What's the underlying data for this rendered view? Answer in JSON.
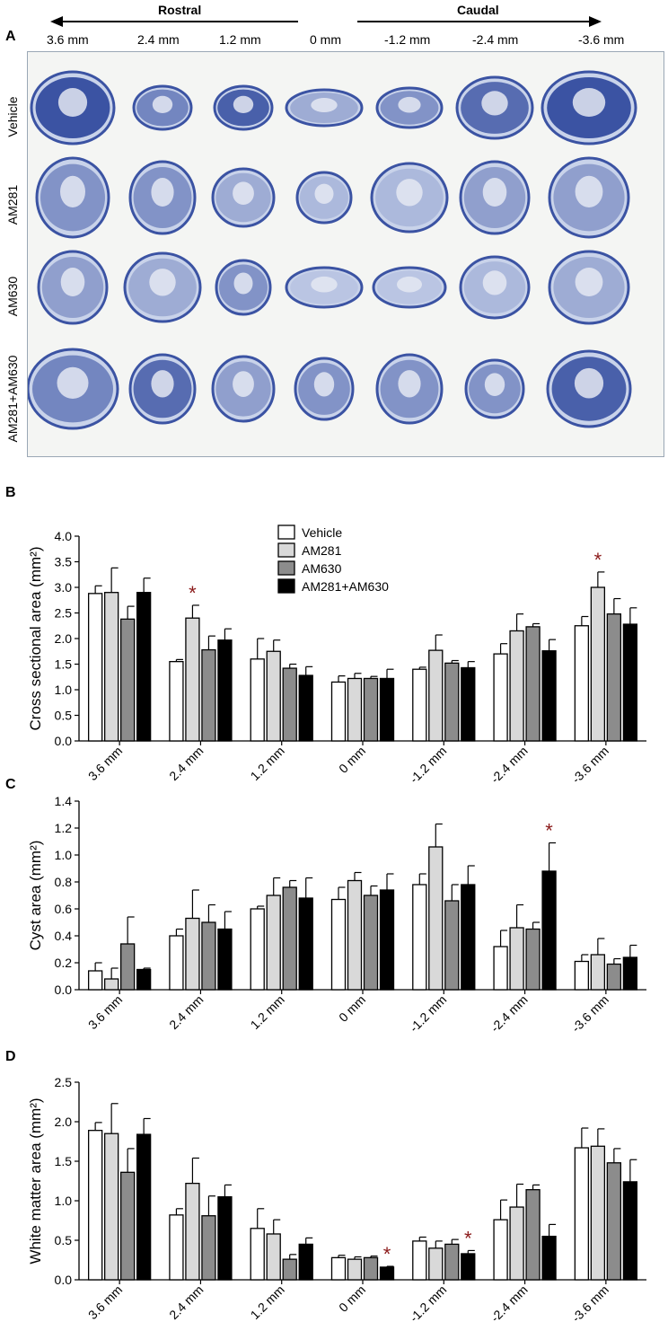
{
  "panel_a": {
    "letter": "A",
    "rostral": "Rostral",
    "caudal": "Caudal",
    "distances": [
      "3.6 mm",
      "2.4 mm",
      "1.2 mm",
      "0 mm",
      "-1.2 mm",
      "-2.4 mm",
      "-3.6 mm"
    ],
    "rows": [
      "Vehicle",
      "AM281",
      "AM630",
      "AM281+AM630"
    ]
  },
  "legend": [
    "Vehicle",
    "AM281",
    "AM630",
    "AM281+AM630"
  ],
  "colors": {
    "vehicle": "#ffffff",
    "am281": "#d9d9d9",
    "am630": "#8c8c8c",
    "combo": "#000000",
    "star": "#8b1a1a",
    "tissue_blue": "#3b53a3",
    "tissue_light": "#c9d3ea"
  },
  "chart_data": [
    {
      "letter": "B",
      "type": "bar",
      "ylabel": "Cross sectional area (mm²)",
      "ylim": [
        0,
        4.0
      ],
      "yticks": [
        "0.0",
        "0.5",
        "1.0",
        "1.5",
        "2.0",
        "2.5",
        "3.0",
        "3.5",
        "4.0"
      ],
      "categories": [
        "3.6 mm",
        "2.4 mm",
        "1.2 mm",
        "0 mm",
        "-1.2 mm",
        "-2.4 mm",
        "-3.6 mm"
      ],
      "series": [
        {
          "name": "Vehicle",
          "values": [
            2.88,
            1.55,
            1.6,
            1.15,
            1.4,
            1.7,
            2.25
          ],
          "errors": [
            0.15,
            0.04,
            0.4,
            0.12,
            0.04,
            0.2,
            0.18
          ]
        },
        {
          "name": "AM281",
          "values": [
            2.9,
            2.4,
            1.75,
            1.22,
            1.77,
            2.15,
            3.0
          ],
          "errors": [
            0.48,
            0.25,
            0.22,
            0.1,
            0.3,
            0.33,
            0.3
          ]
        },
        {
          "name": "AM630",
          "values": [
            2.38,
            1.78,
            1.42,
            1.22,
            1.52,
            2.23,
            2.48
          ],
          "errors": [
            0.25,
            0.27,
            0.08,
            0.04,
            0.05,
            0.06,
            0.3
          ]
        },
        {
          "name": "AM281+AM630",
          "values": [
            2.9,
            1.97,
            1.28,
            1.22,
            1.43,
            1.76,
            2.28
          ],
          "errors": [
            0.28,
            0.22,
            0.17,
            0.18,
            0.12,
            0.22,
            0.32
          ]
        }
      ],
      "stars": [
        {
          "category": 1,
          "series": 1
        },
        {
          "category": 6,
          "series": 1
        }
      ]
    },
    {
      "letter": "C",
      "type": "bar",
      "ylabel": "Cyst area (mm²)",
      "ylim": [
        0,
        1.4
      ],
      "yticks": [
        "0.0",
        "0.2",
        "0.4",
        "0.6",
        "0.8",
        "1.0",
        "1.2",
        "1.4"
      ],
      "categories": [
        "3.6 mm",
        "2.4 mm",
        "1.2 mm",
        "0 mm",
        "-1.2 mm",
        "-2.4 mm",
        "-3.6 mm"
      ],
      "series": [
        {
          "name": "Vehicle",
          "values": [
            0.14,
            0.4,
            0.6,
            0.67,
            0.78,
            0.32,
            0.21
          ],
          "errors": [
            0.06,
            0.05,
            0.02,
            0.09,
            0.08,
            0.12,
            0.05
          ]
        },
        {
          "name": "AM281",
          "values": [
            0.08,
            0.53,
            0.7,
            0.81,
            1.06,
            0.46,
            0.26
          ],
          "errors": [
            0.08,
            0.21,
            0.13,
            0.06,
            0.17,
            0.17,
            0.12
          ]
        },
        {
          "name": "AM630",
          "values": [
            0.34,
            0.5,
            0.76,
            0.7,
            0.66,
            0.45,
            0.19
          ],
          "errors": [
            0.2,
            0.13,
            0.05,
            0.07,
            0.12,
            0.05,
            0.04
          ]
        },
        {
          "name": "AM281+AM630",
          "values": [
            0.15,
            0.45,
            0.68,
            0.74,
            0.78,
            0.88,
            0.24
          ],
          "errors": [
            0.01,
            0.13,
            0.15,
            0.12,
            0.14,
            0.21,
            0.09
          ]
        }
      ],
      "stars": [
        {
          "category": 5,
          "series": 3
        }
      ]
    },
    {
      "letter": "D",
      "type": "bar",
      "ylabel": "White matter area (mm²)",
      "ylim": [
        0,
        2.5
      ],
      "yticks": [
        "0.0",
        "0.5",
        "1.0",
        "1.5",
        "2.0",
        "2.5"
      ],
      "categories": [
        "3.6 mm",
        "2.4 mm",
        "1.2 mm",
        "0 mm",
        "-1.2 mm",
        "-2.4 mm",
        "-3.6 mm"
      ],
      "series": [
        {
          "name": "Vehicle",
          "values": [
            1.89,
            0.82,
            0.65,
            0.28,
            0.49,
            0.76,
            1.67
          ],
          "errors": [
            0.1,
            0.08,
            0.25,
            0.03,
            0.05,
            0.25,
            0.25
          ]
        },
        {
          "name": "AM281",
          "values": [
            1.85,
            1.22,
            0.58,
            0.26,
            0.4,
            0.92,
            1.69
          ],
          "errors": [
            0.38,
            0.32,
            0.18,
            0.03,
            0.09,
            0.29,
            0.22
          ]
        },
        {
          "name": "AM630",
          "values": [
            1.36,
            0.81,
            0.26,
            0.28,
            0.45,
            1.14,
            1.48
          ],
          "errors": [
            0.3,
            0.25,
            0.06,
            0.02,
            0.06,
            0.06,
            0.18
          ]
        },
        {
          "name": "AM281+AM630",
          "values": [
            1.84,
            1.05,
            0.45,
            0.16,
            0.33,
            0.55,
            1.24
          ],
          "errors": [
            0.2,
            0.15,
            0.08,
            0.01,
            0.04,
            0.15,
            0.28
          ]
        }
      ],
      "stars": [
        {
          "category": 3,
          "series": 3
        },
        {
          "category": 4,
          "series": 3
        }
      ]
    }
  ]
}
